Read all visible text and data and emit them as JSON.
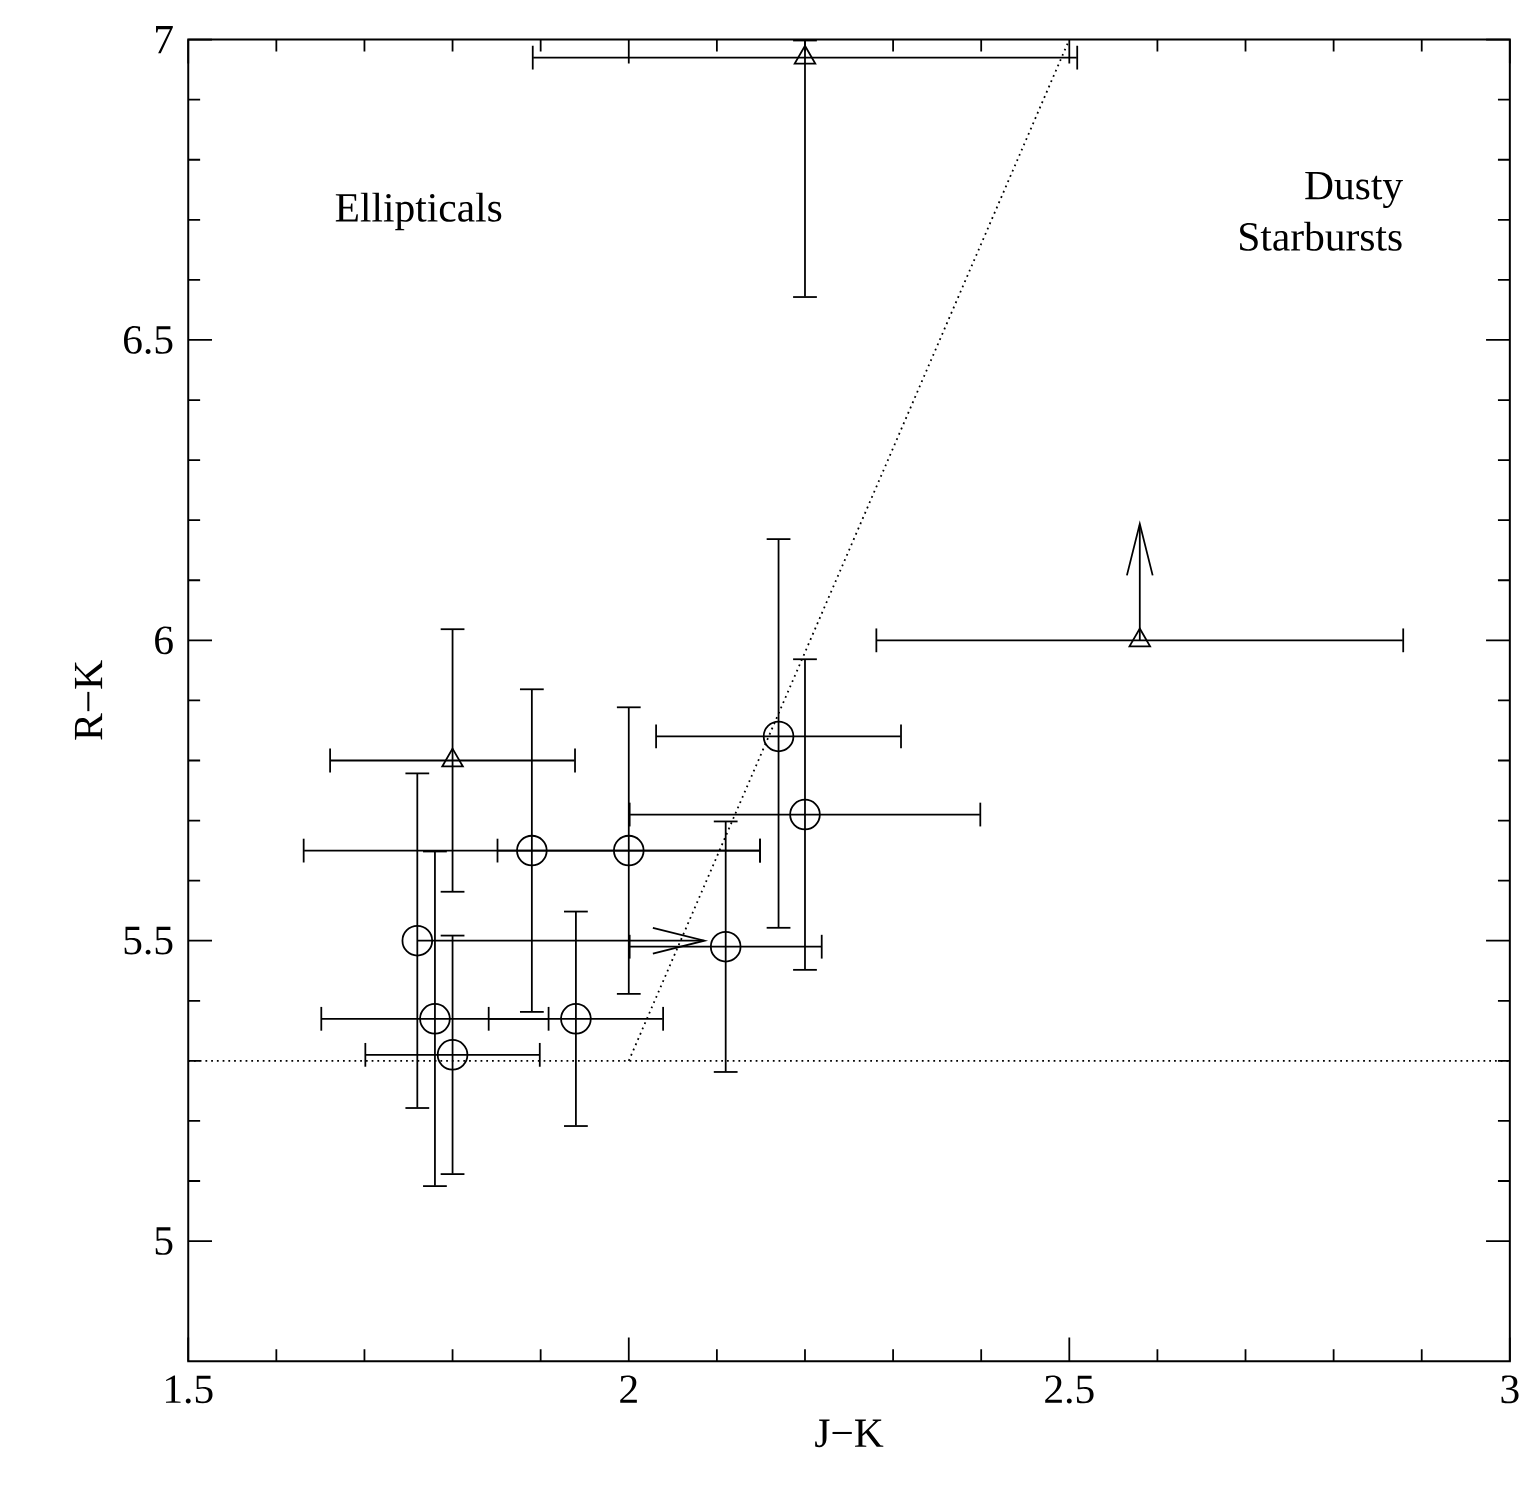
{
  "chart_data": {
    "type": "scatter",
    "xlabel": "J−K",
    "ylabel": "R−K",
    "xlim": [
      1.5,
      3
    ],
    "ylim": [
      4.8,
      7
    ],
    "xticks": [
      1.5,
      2,
      2.5,
      3
    ],
    "yticks": [
      5,
      5.5,
      6,
      6.5,
      7
    ],
    "annotations": [
      "Ellipticals",
      "Dusty Starbursts"
    ],
    "ref_lines": [
      {
        "axis": "y",
        "value": 5.3,
        "line_style": "dotted"
      }
    ],
    "series": [
      {
        "marker": "circle",
        "color": "#000000",
        "x": [
          1.89,
          2.0,
          2.17,
          2.2,
          1.76,
          2.11,
          1.78,
          1.94,
          1.8
        ],
        "values": [
          5.65,
          5.65,
          5.84,
          5.71,
          5.5,
          5.49,
          5.37,
          5.37,
          5.31
        ],
        "xerrors": [
          [
            1.63,
            2.15
          ],
          [
            1.85,
            2.15
          ],
          [
            2.03,
            2.31
          ],
          [
            2.0,
            2.4
          ],
          [
            1.76,
            2.09
          ],
          [
            2.0,
            2.22
          ],
          [
            1.65,
            1.91
          ],
          [
            1.84,
            2.04
          ],
          [
            1.7,
            1.9
          ]
        ],
        "errors": [
          [
            5.38,
            5.92
          ],
          [
            5.41,
            5.89
          ],
          [
            5.52,
            6.17
          ],
          [
            5.45,
            5.97
          ],
          [
            5.22,
            5.78
          ],
          [
            5.28,
            5.7
          ],
          [
            5.09,
            5.65
          ],
          [
            5.19,
            5.55
          ],
          [
            5.11,
            5.51
          ]
        ]
      },
      {
        "marker": "triangle",
        "color": "#000000",
        "x": [
          2.2,
          1.8,
          2.58
        ],
        "values": [
          6.97,
          5.8,
          6.0
        ],
        "xerrors": [
          [
            1.89,
            2.51
          ],
          [
            1.66,
            1.94
          ],
          [
            2.28,
            2.88
          ]
        ],
        "errors": [
          [
            6.57,
            7.0
          ],
          [
            5.58,
            6.02
          ],
          [
            6.0,
            6.2
          ]
        ]
      },
      {
        "type": "line",
        "line_style": "dotted",
        "marker": "none",
        "color": "#000000",
        "x": [
          2.0,
          2.5
        ],
        "values": [
          5.3,
          7.0
        ]
      }
    ]
  }
}
